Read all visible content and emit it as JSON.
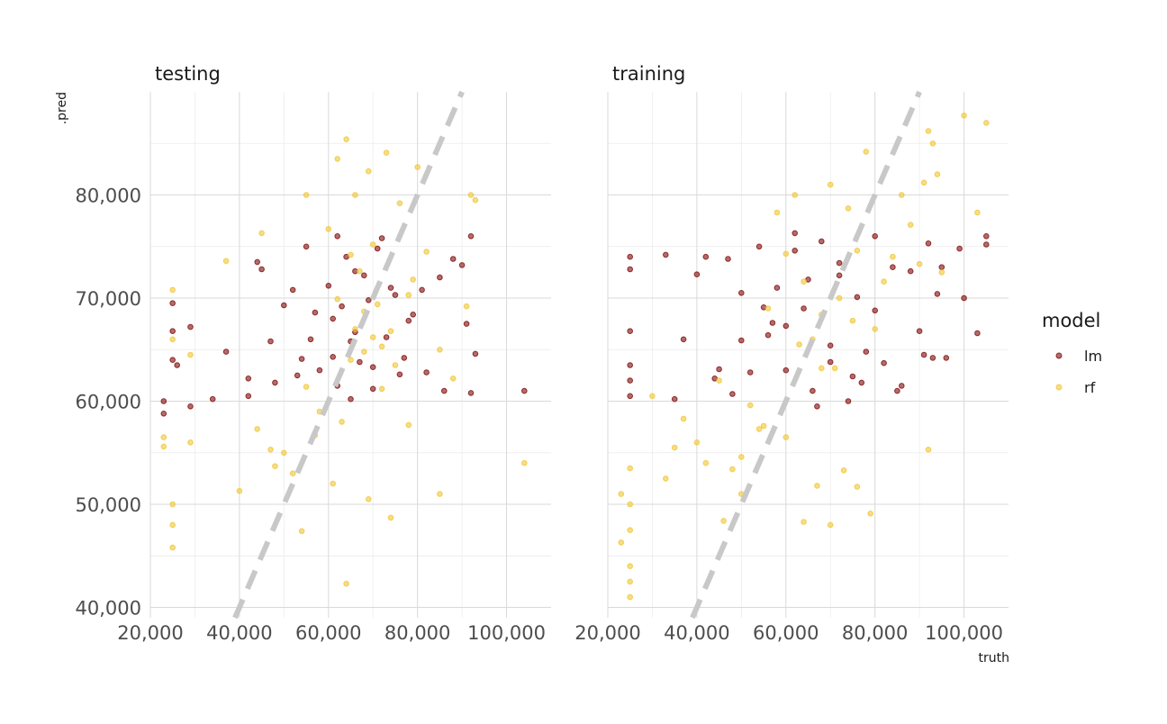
{
  "chart_data": {
    "type": "scatter",
    "facets": [
      "testing",
      "training"
    ],
    "xlabel": "truth",
    "ylabel": ".pred",
    "xlim": [
      20000,
      110000
    ],
    "ylim": [
      39000,
      90000
    ],
    "x_ticks": [
      20000,
      40000,
      60000,
      80000,
      100000
    ],
    "x_tick_labels": [
      "20,000",
      "40,000",
      "60,000",
      "80,000",
      "100,000"
    ],
    "y_ticks": [
      40000,
      50000,
      60000,
      70000,
      80000
    ],
    "y_tick_labels": [
      "40,000",
      "50,000",
      "60,000",
      "70,000",
      "80,000"
    ],
    "grid": true,
    "reference_line": {
      "slope": 1,
      "intercept": 0,
      "style": "dashed",
      "color": "#c8c8c8"
    },
    "legend": {
      "title": "model",
      "placement": "right",
      "entries": [
        {
          "name": "lm",
          "color": "#7f0a0a"
        },
        {
          "name": "rf",
          "color": "#f0c634"
        }
      ]
    },
    "series": [
      {
        "name": "lm",
        "color": "#7f0a0a",
        "panels": {
          "testing": {
            "x": [
              25000,
              25000,
              25000,
              26000,
              23000,
              23000,
              29000,
              29000,
              34000,
              37000,
              44000,
              45000,
              42000,
              42000,
              47000,
              50000,
              52000,
              53000,
              55000,
              56000,
              58000,
              60000,
              61000,
              62000,
              64000,
              65000,
              66000,
              67000,
              69000,
              70000,
              72000,
              73000,
              75000,
              77000,
              79000,
              82000,
              85000,
              88000,
              91000,
              92000,
              93000,
              92000,
              90000,
              86000,
              104000,
              61000,
              63000,
              66000,
              70000,
              74000,
              78000,
              81000,
              57000,
              54000,
              48000,
              68000,
              71000,
              76000,
              62000,
              65000
            ],
            "y": [
              69500,
              66800,
              64000,
              63500,
              60000,
              58800,
              67200,
              59500,
              60200,
              64800,
              73500,
              72800,
              62200,
              60500,
              65800,
              69300,
              70800,
              62500,
              75000,
              66000,
              63000,
              71200,
              68000,
              61500,
              74000,
              65800,
              72600,
              63800,
              69800,
              61200,
              75800,
              66200,
              70300,
              64200,
              68400,
              62800,
              72000,
              73800,
              67500,
              76000,
              64600,
              60800,
              73200,
              61000,
              61000,
              64300,
              69200,
              66700,
              63300,
              71000,
              67800,
              70800,
              68600,
              64100,
              61800,
              72200,
              74800,
              62600,
              76000,
              60200
            ]
          },
          "training": {
            "x": [
              25000,
              25000,
              25000,
              25000,
              25000,
              25000,
              33000,
              35000,
              37000,
              40000,
              42000,
              44000,
              47000,
              50000,
              52000,
              54000,
              56000,
              58000,
              60000,
              62000,
              64000,
              66000,
              68000,
              70000,
              72000,
              74000,
              76000,
              78000,
              80000,
              82000,
              84000,
              86000,
              88000,
              90000,
              92000,
              93000,
              94000,
              96000,
              100000,
              105000,
              105000,
              103000,
              99000,
              95000,
              60000,
              65000,
              70000,
              75000,
              80000,
              85000,
              55000,
              50000,
              45000,
              62000,
              67000,
              72000,
              77000,
              57000,
              48000,
              91000
            ],
            "y": [
              74000,
              72800,
              66800,
              63500,
              62000,
              60500,
              74200,
              60200,
              66000,
              72300,
              74000,
              62200,
              73800,
              70500,
              62800,
              75000,
              66400,
              71000,
              63000,
              74600,
              69000,
              61000,
              75500,
              65400,
              72200,
              60000,
              70100,
              64800,
              76000,
              63700,
              73000,
              61500,
              72600,
              66800,
              75300,
              64200,
              70400,
              64200,
              70000,
              76000,
              75200,
              66600,
              74800,
              73000,
              67300,
              71800,
              63800,
              62400,
              68800,
              61000,
              69100,
              65900,
              63100,
              76300,
              59500,
              73400,
              61800,
              67600,
              60700,
              64500
            ]
          }
        }
      },
      {
        "name": "rf",
        "color": "#f0c634",
        "panels": {
          "testing": {
            "x": [
              25000,
              25000,
              25000,
              25000,
              23000,
              23000,
              29000,
              29000,
              25000,
              37000,
              40000,
              44000,
              45000,
              48000,
              50000,
              52000,
              54000,
              55000,
              58000,
              60000,
              62000,
              64000,
              65000,
              66000,
              68000,
              69000,
              70000,
              72000,
              73000,
              74000,
              76000,
              78000,
              80000,
              82000,
              85000,
              88000,
              91000,
              92000,
              93000,
              104000,
              64000,
              69000,
              74000,
              61000,
              63000,
              66000,
              71000,
              75000,
              79000,
              57000,
              67000,
              70000,
              65000,
              68000,
              72000,
              62000,
              47000,
              55000,
              78000,
              85000
            ],
            "y": [
              70800,
              50000,
              48000,
              45800,
              56500,
              55600,
              64500,
              56000,
              66000,
              73600,
              51300,
              57300,
              76300,
              53700,
              55000,
              53000,
              47400,
              80000,
              59000,
              76700,
              83500,
              85400,
              74200,
              80000,
              64800,
              82300,
              75200,
              61200,
              84100,
              66800,
              79200,
              70300,
              82700,
              74500,
              51000,
              62200,
              69200,
              80000,
              79500,
              54000,
              42300,
              50500,
              48700,
              52000,
              58000,
              67000,
              69400,
              63500,
              71800,
              56700,
              72600,
              66200,
              64000,
              68700,
              65300,
              69900,
              55300,
              61400,
              57700,
              65000
            ]
          },
          "training": {
            "x": [
              25000,
              25000,
              25000,
              25000,
              25000,
              25000,
              23000,
              23000,
              30000,
              33000,
              35000,
              37000,
              40000,
              42000,
              45000,
              48000,
              50000,
              52000,
              54000,
              56000,
              58000,
              60000,
              62000,
              64000,
              66000,
              68000,
              70000,
              72000,
              74000,
              76000,
              78000,
              80000,
              82000,
              84000,
              86000,
              88000,
              90000,
              91000,
              92000,
              93000,
              94000,
              95000,
              100000,
              103000,
              105000,
              60000,
              64000,
              67000,
              70000,
              73000,
              76000,
              79000,
              55000,
              50000,
              46000,
              63000,
              68000,
              71000,
              75000,
              92000
            ],
            "y": [
              53500,
              50000,
              47500,
              44000,
              42500,
              41000,
              51000,
              46300,
              60500,
              52500,
              55500,
              58300,
              56000,
              54000,
              62000,
              53400,
              51000,
              59600,
              57300,
              69000,
              78300,
              74300,
              80000,
              71600,
              66000,
              63200,
              81000,
              70000,
              78700,
              74600,
              84200,
              67000,
              71600,
              74000,
              80000,
              77100,
              73300,
              81200,
              86200,
              85000,
              82000,
              72500,
              87700,
              78300,
              87000,
              56500,
              48300,
              51800,
              48000,
              53300,
              51700,
              49100,
              57600,
              54600,
              48400,
              65500,
              68400,
              63200,
              67800,
              55300
            ]
          }
        }
      }
    ]
  }
}
